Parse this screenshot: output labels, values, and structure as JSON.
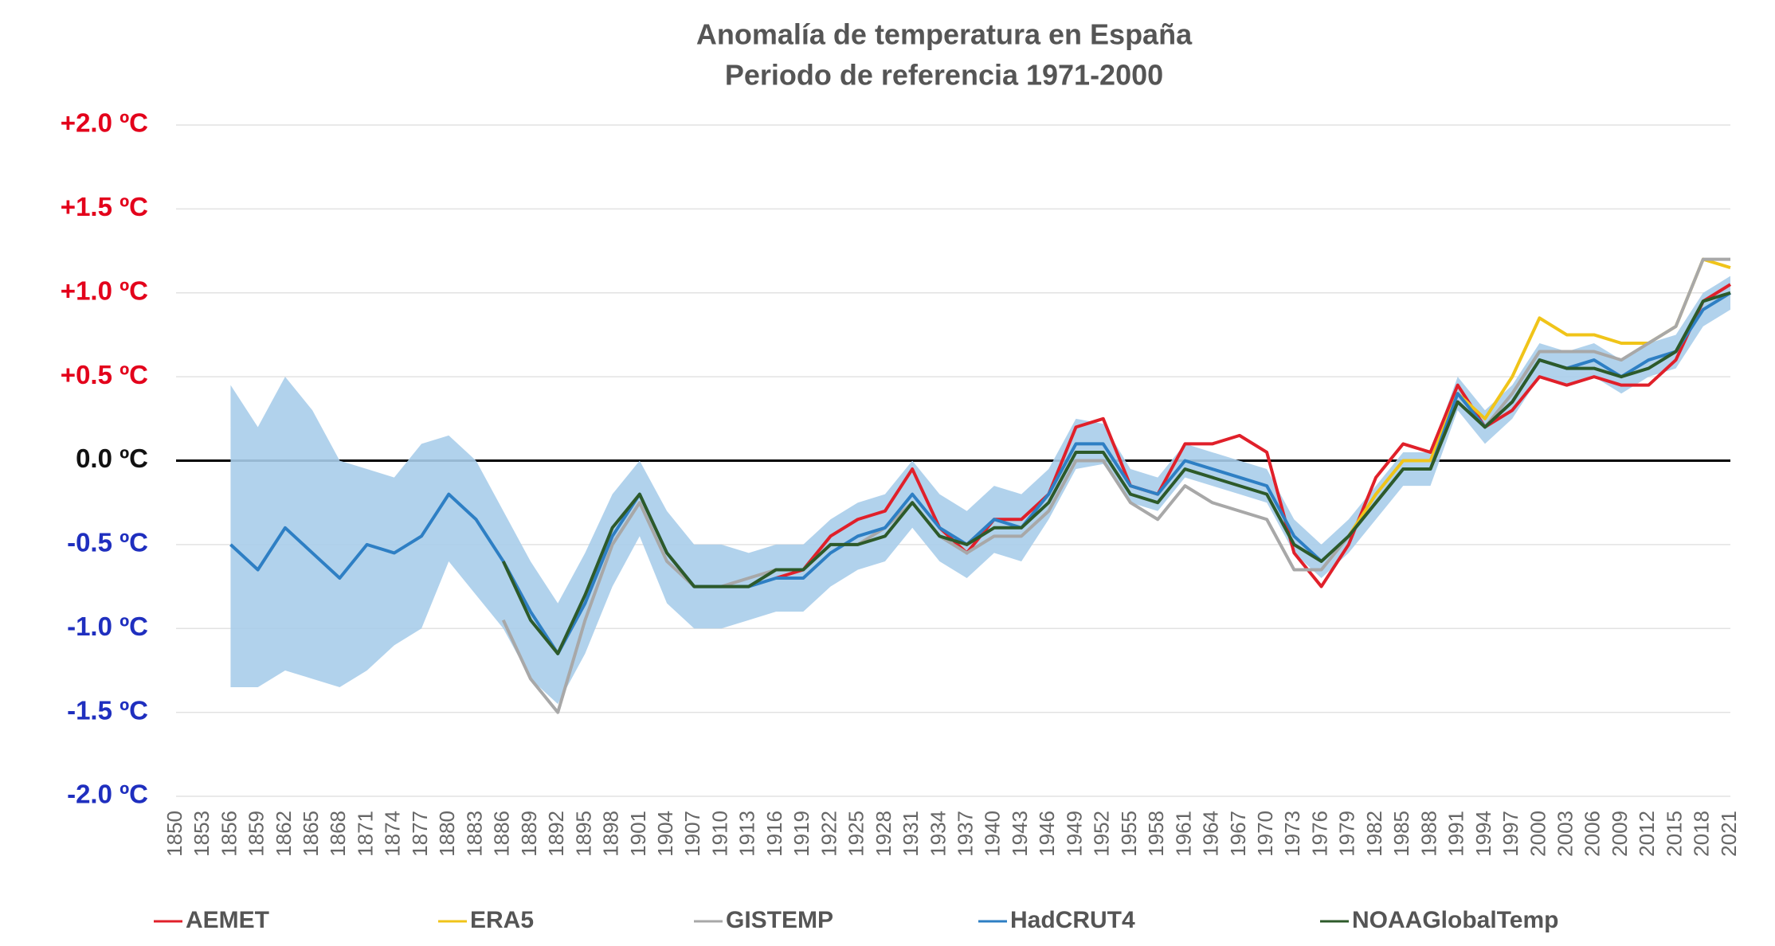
{
  "chart_data": {
    "type": "line",
    "title": "Anomalía de temperatura en España",
    "subtitle": "Periodo de referencia 1971-2000",
    "x": [
      1850,
      1853,
      1856,
      1859,
      1862,
      1865,
      1868,
      1871,
      1874,
      1877,
      1880,
      1883,
      1886,
      1889,
      1892,
      1895,
      1898,
      1901,
      1904,
      1907,
      1910,
      1913,
      1916,
      1919,
      1922,
      1925,
      1928,
      1931,
      1934,
      1937,
      1940,
      1943,
      1946,
      1949,
      1952,
      1955,
      1958,
      1961,
      1964,
      1967,
      1970,
      1973,
      1976,
      1979,
      1982,
      1985,
      1988,
      1991,
      1994,
      1997,
      2000,
      2003,
      2006,
      2009,
      2012,
      2015,
      2018,
      2021
    ],
    "xlim": [
      1850,
      2021
    ],
    "xticks": [
      1850,
      1853,
      1856,
      1859,
      1862,
      1865,
      1868,
      1871,
      1874,
      1877,
      1880,
      1883,
      1886,
      1889,
      1892,
      1895,
      1898,
      1901,
      1904,
      1907,
      1910,
      1913,
      1916,
      1919,
      1922,
      1925,
      1928,
      1931,
      1934,
      1937,
      1940,
      1943,
      1946,
      1949,
      1952,
      1955,
      1958,
      1961,
      1964,
      1967,
      1970,
      1973,
      1976,
      1979,
      1982,
      1985,
      1988,
      1991,
      1994,
      1997,
      2000,
      2003,
      2006,
      2009,
      2012,
      2015,
      2018,
      2021
    ],
    "ylim": [
      -2,
      2
    ],
    "yticks": [
      {
        "value": 2,
        "label": "+2.0 ºC"
      },
      {
        "value": 1.5,
        "label": "+1.5 ºC"
      },
      {
        "value": 1,
        "label": "+1.0 ºC"
      },
      {
        "value": 0.5,
        "label": "+0.5 ºC"
      },
      {
        "value": 0,
        "label": "0.0 ºC"
      },
      {
        "value": -0.5,
        "label": "-0.5 ºC"
      },
      {
        "value": -1,
        "label": "-1.0 ºC"
      },
      {
        "value": -1.5,
        "label": "-1.5 ºC"
      },
      {
        "value": -2,
        "label": "-2.0 ºC"
      }
    ],
    "grid": true,
    "series": [
      {
        "name": "AEMET",
        "color": "#e0202a",
        "values": [
          null,
          null,
          null,
          null,
          null,
          null,
          null,
          null,
          null,
          null,
          null,
          null,
          null,
          null,
          null,
          null,
          null,
          null,
          null,
          null,
          null,
          null,
          -0.7,
          -0.65,
          -0.45,
          -0.35,
          -0.3,
          -0.05,
          -0.4,
          -0.55,
          -0.35,
          -0.35,
          -0.2,
          0.2,
          0.25,
          -0.15,
          -0.2,
          0.1,
          0.1,
          0.15,
          0.05,
          -0.55,
          -0.75,
          -0.5,
          -0.1,
          0.1,
          0.05,
          0.45,
          0.2,
          0.3,
          0.5,
          0.45,
          0.5,
          0.45,
          0.45,
          0.6,
          0.95,
          1.05
        ]
      },
      {
        "name": "ERA5",
        "color": "#f0c419",
        "values": [
          null,
          null,
          null,
          null,
          null,
          null,
          null,
          null,
          null,
          null,
          null,
          null,
          null,
          null,
          null,
          null,
          null,
          null,
          null,
          null,
          null,
          null,
          null,
          null,
          null,
          null,
          null,
          null,
          null,
          null,
          null,
          null,
          null,
          null,
          null,
          null,
          null,
          null,
          null,
          null,
          null,
          null,
          null,
          -0.45,
          -0.2,
          0.0,
          0.0,
          0.4,
          0.25,
          0.5,
          0.85,
          0.75,
          0.75,
          0.7,
          0.7,
          0.8,
          1.2,
          1.15
        ]
      },
      {
        "name": "GISTEMP",
        "color": "#a8a8a8",
        "values": [
          null,
          null,
          null,
          null,
          null,
          null,
          null,
          null,
          null,
          null,
          null,
          null,
          -0.95,
          -1.3,
          -1.5,
          -0.95,
          -0.5,
          -0.25,
          -0.6,
          -0.75,
          -0.75,
          -0.7,
          -0.65,
          -0.65,
          -0.5,
          -0.5,
          -0.4,
          -0.25,
          -0.45,
          -0.55,
          -0.45,
          -0.45,
          -0.3,
          0.0,
          0.0,
          -0.25,
          -0.35,
          -0.15,
          -0.25,
          -0.3,
          -0.35,
          -0.65,
          -0.65,
          -0.45,
          -0.25,
          -0.05,
          -0.05,
          0.35,
          0.2,
          0.4,
          0.65,
          0.65,
          0.65,
          0.6,
          0.7,
          0.8,
          1.2,
          1.2
        ]
      },
      {
        "name": "HadCRUT4",
        "color": "#2e7fc4",
        "band_color": "#a9cdea",
        "values": [
          null,
          null,
          -0.5,
          -0.65,
          -0.4,
          -0.55,
          -0.7,
          -0.5,
          -0.55,
          -0.45,
          -0.2,
          -0.35,
          -0.6,
          -0.9,
          -1.15,
          -0.85,
          -0.45,
          -0.2,
          -0.55,
          -0.75,
          -0.75,
          -0.75,
          -0.7,
          -0.7,
          -0.55,
          -0.45,
          -0.4,
          -0.2,
          -0.4,
          -0.5,
          -0.35,
          -0.4,
          -0.2,
          0.1,
          0.1,
          -0.15,
          -0.2,
          0.0,
          -0.05,
          -0.1,
          -0.15,
          -0.45,
          -0.6,
          -0.45,
          -0.25,
          -0.05,
          -0.05,
          0.4,
          0.2,
          0.35,
          0.6,
          0.55,
          0.6,
          0.5,
          0.6,
          0.65,
          0.9,
          1.0
        ],
        "band_upper": [
          null,
          null,
          0.45,
          0.2,
          0.5,
          0.3,
          0.0,
          -0.05,
          -0.1,
          0.1,
          0.15,
          0.0,
          -0.3,
          -0.6,
          -0.85,
          -0.55,
          -0.2,
          0.0,
          -0.3,
          -0.5,
          -0.5,
          -0.55,
          -0.5,
          -0.5,
          -0.35,
          -0.25,
          -0.2,
          0.0,
          -0.2,
          -0.3,
          -0.15,
          -0.2,
          -0.05,
          0.25,
          0.22,
          -0.05,
          -0.1,
          0.1,
          0.05,
          0.0,
          -0.05,
          -0.35,
          -0.5,
          -0.35,
          -0.15,
          0.05,
          0.05,
          0.5,
          0.3,
          0.45,
          0.7,
          0.65,
          0.7,
          0.6,
          0.7,
          0.75,
          1.0,
          1.1
        ],
        "band_lower": [
          null,
          null,
          -1.35,
          -1.35,
          -1.25,
          -1.3,
          -1.35,
          -1.25,
          -1.1,
          -1.0,
          -0.6,
          -0.8,
          -1.0,
          -1.3,
          -1.45,
          -1.15,
          -0.75,
          -0.45,
          -0.85,
          -1.0,
          -1.0,
          -0.95,
          -0.9,
          -0.9,
          -0.75,
          -0.65,
          -0.6,
          -0.4,
          -0.6,
          -0.7,
          -0.55,
          -0.6,
          -0.35,
          -0.05,
          -0.02,
          -0.25,
          -0.3,
          -0.1,
          -0.15,
          -0.2,
          -0.25,
          -0.55,
          -0.7,
          -0.55,
          -0.35,
          -0.15,
          -0.15,
          0.3,
          0.1,
          0.25,
          0.5,
          0.45,
          0.5,
          0.4,
          0.5,
          0.55,
          0.8,
          0.9
        ]
      },
      {
        "name": "NOAAGlobalTemp",
        "color": "#2d5a2a",
        "values": [
          null,
          null,
          null,
          null,
          null,
          null,
          null,
          null,
          null,
          null,
          null,
          null,
          -0.6,
          -0.95,
          -1.15,
          -0.8,
          -0.4,
          -0.2,
          -0.55,
          -0.75,
          -0.75,
          -0.75,
          -0.65,
          -0.65,
          -0.5,
          -0.5,
          -0.45,
          -0.25,
          -0.45,
          -0.5,
          -0.4,
          -0.4,
          -0.25,
          0.05,
          0.05,
          -0.2,
          -0.25,
          -0.05,
          -0.1,
          -0.15,
          -0.2,
          -0.5,
          -0.6,
          -0.45,
          -0.25,
          -0.05,
          -0.05,
          0.35,
          0.2,
          0.35,
          0.6,
          0.55,
          0.55,
          0.5,
          0.55,
          0.65,
          0.95,
          1.0
        ]
      }
    ]
  }
}
